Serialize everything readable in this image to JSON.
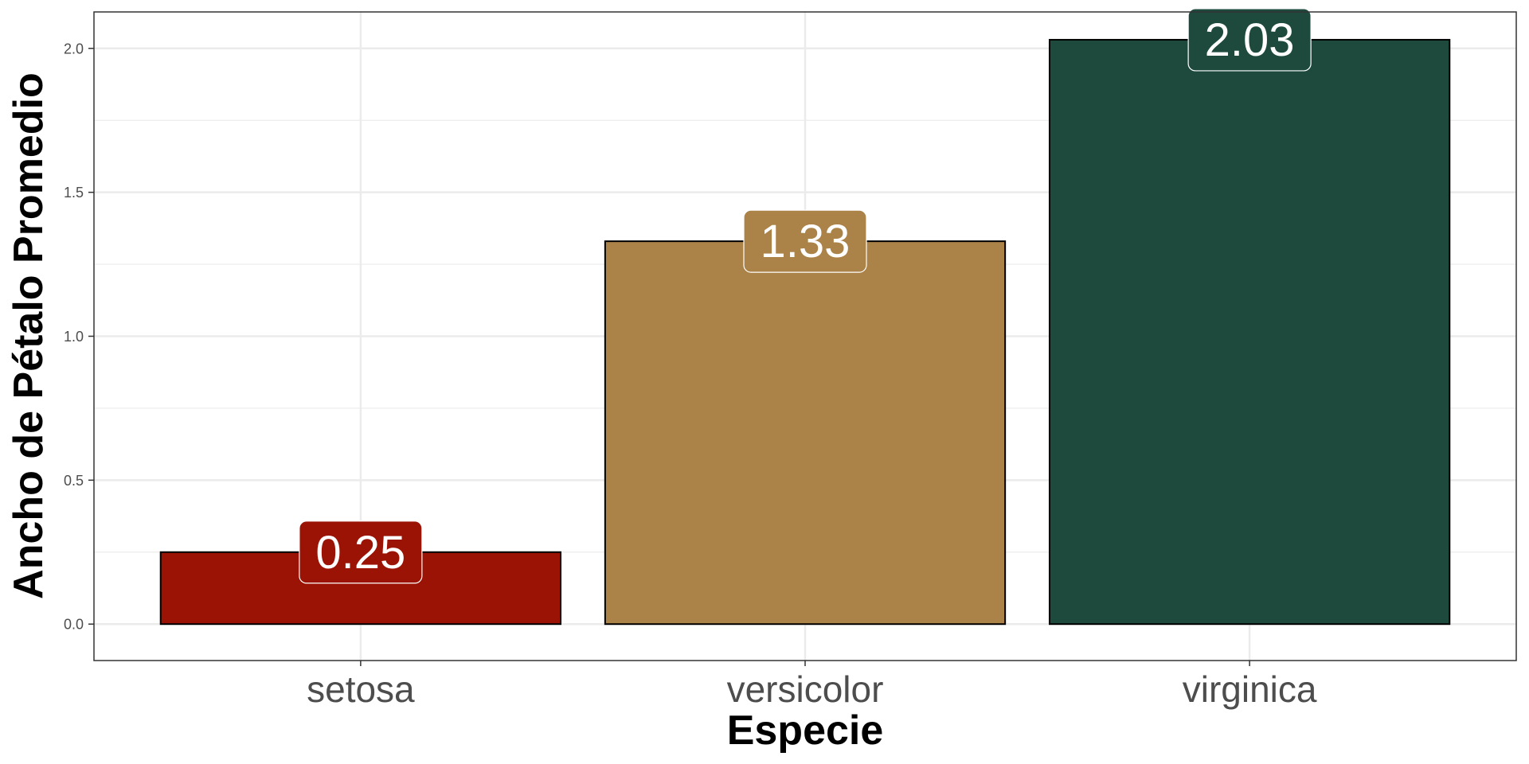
{
  "chart_data": {
    "type": "bar",
    "categories": [
      "setosa",
      "versicolor",
      "virginica"
    ],
    "values": [
      0.25,
      1.33,
      2.03
    ],
    "data_labels": [
      "0.25",
      "1.33",
      "2.03"
    ],
    "colors": [
      "#9b1305",
      "#ab8247",
      "#1e4a3e"
    ],
    "title": "",
    "xlabel": "Especie",
    "ylabel": "Ancho de Pétalo Promedio",
    "ylim": [
      -0.1266,
      2.1266
    ],
    "yticks": [
      0.0,
      0.5,
      1.0,
      1.5,
      2.0
    ],
    "ytick_labels": [
      "0.0",
      "0.5",
      "1.0",
      "1.5",
      "2.0"
    ],
    "grid": true,
    "legend": "none"
  }
}
